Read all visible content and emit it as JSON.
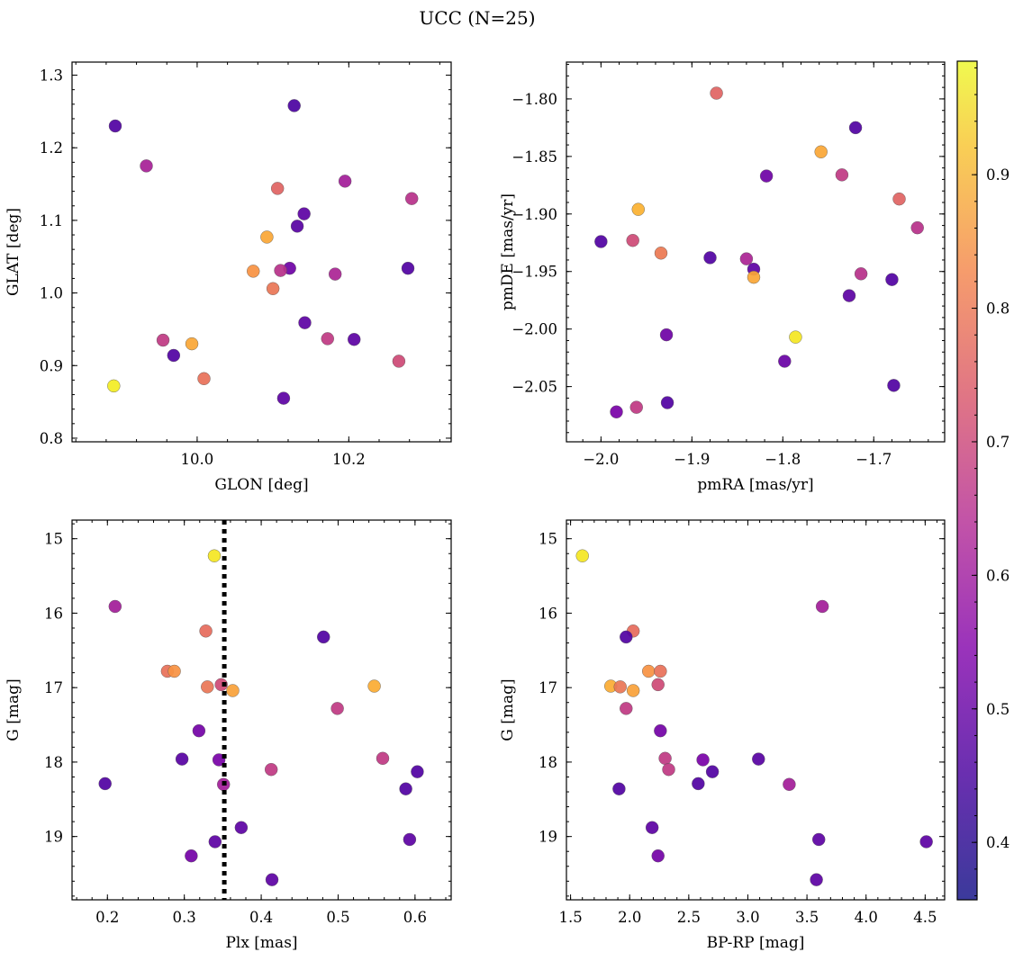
{
  "chart_data": [
    {
      "panel": "top-left",
      "type": "scatter",
      "xlabel": "GLON [deg]",
      "ylabel": "GLAT [deg]",
      "xlim": [
        9.835,
        10.335
      ],
      "ylim": [
        0.795,
        1.318
      ],
      "xticks": [
        10.0,
        10.2
      ],
      "xtick_labels": [
        "10.0",
        "10.2"
      ],
      "yticks": [
        0.8,
        0.9,
        1.0,
        1.1,
        1.2,
        1.3
      ],
      "ytick_labels": [
        "0.8",
        "0.9",
        "1.0",
        "1.1",
        "1.2",
        "1.3"
      ],
      "points": [
        {
          "x": 9.892,
          "y": 1.23,
          "c": 0.4
        },
        {
          "x": 9.933,
          "y": 1.175,
          "c": 0.56
        },
        {
          "x": 10.128,
          "y": 1.258,
          "c": 0.39
        },
        {
          "x": 10.106,
          "y": 1.144,
          "c": 0.72
        },
        {
          "x": 10.195,
          "y": 1.154,
          "c": 0.55
        },
        {
          "x": 10.283,
          "y": 1.13,
          "c": 0.6
        },
        {
          "x": 10.141,
          "y": 1.109,
          "c": 0.42
        },
        {
          "x": 10.132,
          "y": 1.092,
          "c": 0.41
        },
        {
          "x": 10.092,
          "y": 1.077,
          "c": 0.86
        },
        {
          "x": 10.074,
          "y": 1.03,
          "c": 0.82
        },
        {
          "x": 10.122,
          "y": 1.034,
          "c": 0.45
        },
        {
          "x": 10.11,
          "y": 1.031,
          "c": 0.6
        },
        {
          "x": 10.182,
          "y": 1.026,
          "c": 0.57
        },
        {
          "x": 10.278,
          "y": 1.034,
          "c": 0.4
        },
        {
          "x": 10.1,
          "y": 1.006,
          "c": 0.76
        },
        {
          "x": 10.142,
          "y": 0.959,
          "c": 0.42
        },
        {
          "x": 9.955,
          "y": 0.935,
          "c": 0.62
        },
        {
          "x": 9.993,
          "y": 0.93,
          "c": 0.86
        },
        {
          "x": 10.172,
          "y": 0.937,
          "c": 0.62
        },
        {
          "x": 10.207,
          "y": 0.936,
          "c": 0.42
        },
        {
          "x": 9.969,
          "y": 0.914,
          "c": 0.4
        },
        {
          "x": 10.266,
          "y": 0.906,
          "c": 0.66
        },
        {
          "x": 10.009,
          "y": 0.882,
          "c": 0.75
        },
        {
          "x": 9.89,
          "y": 0.872,
          "c": 0.98
        },
        {
          "x": 10.114,
          "y": 0.855,
          "c": 0.42
        }
      ]
    },
    {
      "panel": "top-right",
      "type": "scatter",
      "xlabel": "pmRA [mas/yr]",
      "ylabel": "pmDE [mas/yr]",
      "xlim": [
        -2.038,
        -1.622
      ],
      "ylim": [
        -2.098,
        -1.768
      ],
      "xticks": [
        -2.0,
        -1.9,
        -1.8,
        -1.7
      ],
      "xtick_labels": [
        "−2.0",
        "−1.9",
        "−1.8",
        "−1.7"
      ],
      "yticks": [
        -2.05,
        -2.0,
        -1.95,
        -1.9,
        -1.85,
        -1.8
      ],
      "ytick_labels": [
        "−2.05",
        "−2.00",
        "−1.95",
        "−1.90",
        "−1.85",
        "−1.80"
      ],
      "points": [
        {
          "x": -1.873,
          "y": -1.795,
          "c": 0.72
        },
        {
          "x": -1.72,
          "y": -1.825,
          "c": 0.4
        },
        {
          "x": -1.758,
          "y": -1.846,
          "c": 0.86
        },
        {
          "x": -1.735,
          "y": -1.866,
          "c": 0.62
        },
        {
          "x": -1.818,
          "y": -1.867,
          "c": 0.45
        },
        {
          "x": -1.672,
          "y": -1.887,
          "c": 0.72
        },
        {
          "x": -1.959,
          "y": -1.896,
          "c": 0.88
        },
        {
          "x": -1.652,
          "y": -1.912,
          "c": 0.6
        },
        {
          "x": -2.0,
          "y": -1.924,
          "c": 0.4
        },
        {
          "x": -1.965,
          "y": -1.923,
          "c": 0.66
        },
        {
          "x": -1.934,
          "y": -1.934,
          "c": 0.77
        },
        {
          "x": -1.88,
          "y": -1.938,
          "c": 0.4
        },
        {
          "x": -1.84,
          "y": -1.939,
          "c": 0.57
        },
        {
          "x": -1.832,
          "y": -1.948,
          "c": 0.42
        },
        {
          "x": -1.832,
          "y": -1.955,
          "c": 0.86
        },
        {
          "x": -1.714,
          "y": -1.952,
          "c": 0.6
        },
        {
          "x": -1.68,
          "y": -1.957,
          "c": 0.4
        },
        {
          "x": -1.727,
          "y": -1.971,
          "c": 0.42
        },
        {
          "x": -1.928,
          "y": -2.005,
          "c": 0.45
        },
        {
          "x": -1.786,
          "y": -2.007,
          "c": 0.97
        },
        {
          "x": -1.798,
          "y": -2.028,
          "c": 0.44
        },
        {
          "x": -1.678,
          "y": -2.049,
          "c": 0.4
        },
        {
          "x": -1.927,
          "y": -2.064,
          "c": 0.4
        },
        {
          "x": -1.961,
          "y": -2.068,
          "c": 0.62
        },
        {
          "x": -1.983,
          "y": -2.072,
          "c": 0.47
        }
      ]
    },
    {
      "panel": "bottom-left",
      "type": "scatter",
      "xlabel": "Plx [mas]",
      "ylabel": "G [mag]",
      "xlim": [
        0.154,
        0.647
      ],
      "ylim": [
        19.85,
        14.75
      ],
      "y_inverted": true,
      "xticks": [
        0.2,
        0.3,
        0.4,
        0.5,
        0.6
      ],
      "xtick_labels": [
        "0.2",
        "0.3",
        "0.4",
        "0.5",
        "0.6"
      ],
      "yticks": [
        15,
        16,
        17,
        18,
        19
      ],
      "ytick_labels": [
        "15",
        "16",
        "17",
        "18",
        "19"
      ],
      "vline": {
        "x": 0.352,
        "style": "dotted",
        "color": "#000000"
      },
      "points": [
        {
          "x": 0.339,
          "y": 15.23,
          "c": 0.97
        },
        {
          "x": 0.21,
          "y": 15.91,
          "c": 0.55
        },
        {
          "x": 0.328,
          "y": 16.24,
          "c": 0.74
        },
        {
          "x": 0.481,
          "y": 16.32,
          "c": 0.4
        },
        {
          "x": 0.278,
          "y": 16.78,
          "c": 0.75
        },
        {
          "x": 0.287,
          "y": 16.78,
          "c": 0.82
        },
        {
          "x": 0.33,
          "y": 16.99,
          "c": 0.76
        },
        {
          "x": 0.348,
          "y": 16.96,
          "c": 0.66
        },
        {
          "x": 0.363,
          "y": 17.04,
          "c": 0.85
        },
        {
          "x": 0.547,
          "y": 16.98,
          "c": 0.87
        },
        {
          "x": 0.499,
          "y": 17.28,
          "c": 0.62
        },
        {
          "x": 0.319,
          "y": 17.58,
          "c": 0.46
        },
        {
          "x": 0.297,
          "y": 17.96,
          "c": 0.41
        },
        {
          "x": 0.345,
          "y": 17.97,
          "c": 0.47
        },
        {
          "x": 0.558,
          "y": 17.95,
          "c": 0.62
        },
        {
          "x": 0.413,
          "y": 18.1,
          "c": 0.62
        },
        {
          "x": 0.603,
          "y": 18.13,
          "c": 0.4
        },
        {
          "x": 0.197,
          "y": 18.29,
          "c": 0.4
        },
        {
          "x": 0.351,
          "y": 18.3,
          "c": 0.55
        },
        {
          "x": 0.588,
          "y": 18.36,
          "c": 0.4
        },
        {
          "x": 0.374,
          "y": 18.88,
          "c": 0.42
        },
        {
          "x": 0.34,
          "y": 19.07,
          "c": 0.42
        },
        {
          "x": 0.593,
          "y": 19.04,
          "c": 0.42
        },
        {
          "x": 0.309,
          "y": 19.26,
          "c": 0.46
        },
        {
          "x": 0.414,
          "y": 19.58,
          "c": 0.42
        }
      ]
    },
    {
      "panel": "bottom-right",
      "type": "scatter",
      "xlabel": "BP-RP [mag]",
      "ylabel": "G [mag]",
      "xlim": [
        1.465,
        4.665
      ],
      "ylim": [
        19.85,
        14.75
      ],
      "y_inverted": true,
      "xticks": [
        1.5,
        2.0,
        2.5,
        3.0,
        3.5,
        4.0,
        4.5
      ],
      "xtick_labels": [
        "1.5",
        "2.0",
        "2.5",
        "3.0",
        "3.5",
        "4.0",
        "4.5"
      ],
      "yticks": [
        15,
        16,
        17,
        18,
        19
      ],
      "ytick_labels": [
        "15",
        "16",
        "17",
        "18",
        "19"
      ],
      "points": [
        {
          "x": 1.6,
          "y": 15.23,
          "c": 0.97
        },
        {
          "x": 3.63,
          "y": 15.91,
          "c": 0.55
        },
        {
          "x": 2.03,
          "y": 16.24,
          "c": 0.74
        },
        {
          "x": 1.97,
          "y": 16.32,
          "c": 0.4
        },
        {
          "x": 2.16,
          "y": 16.78,
          "c": 0.82
        },
        {
          "x": 2.26,
          "y": 16.78,
          "c": 0.75
        },
        {
          "x": 1.84,
          "y": 16.98,
          "c": 0.87
        },
        {
          "x": 1.92,
          "y": 16.99,
          "c": 0.76
        },
        {
          "x": 2.24,
          "y": 16.96,
          "c": 0.66
        },
        {
          "x": 2.03,
          "y": 17.04,
          "c": 0.85
        },
        {
          "x": 1.97,
          "y": 17.28,
          "c": 0.62
        },
        {
          "x": 2.26,
          "y": 17.58,
          "c": 0.46
        },
        {
          "x": 2.3,
          "y": 17.95,
          "c": 0.62
        },
        {
          "x": 2.62,
          "y": 17.97,
          "c": 0.47
        },
        {
          "x": 3.09,
          "y": 17.96,
          "c": 0.41
        },
        {
          "x": 2.33,
          "y": 18.1,
          "c": 0.62
        },
        {
          "x": 2.7,
          "y": 18.13,
          "c": 0.4
        },
        {
          "x": 2.58,
          "y": 18.29,
          "c": 0.4
        },
        {
          "x": 3.35,
          "y": 18.3,
          "c": 0.55
        },
        {
          "x": 1.91,
          "y": 18.36,
          "c": 0.4
        },
        {
          "x": 2.19,
          "y": 18.88,
          "c": 0.42
        },
        {
          "x": 3.6,
          "y": 19.04,
          "c": 0.42
        },
        {
          "x": 4.51,
          "y": 19.07,
          "c": 0.42
        },
        {
          "x": 2.24,
          "y": 19.26,
          "c": 0.46
        },
        {
          "x": 3.58,
          "y": 19.58,
          "c": 0.42
        }
      ]
    }
  ],
  "figure": {
    "title": "UCC (N=25)",
    "colorbar": {
      "colormap": "plasma",
      "range": [
        0.357,
        0.985
      ],
      "ticks": [
        0.4,
        0.5,
        0.6,
        0.7,
        0.8,
        0.9
      ],
      "tick_labels": [
        "0.4",
        "0.5",
        "0.6",
        "0.7",
        "0.8",
        "0.9"
      ]
    },
    "point_colormap_range": [
      0.3,
      1.0
    ]
  }
}
